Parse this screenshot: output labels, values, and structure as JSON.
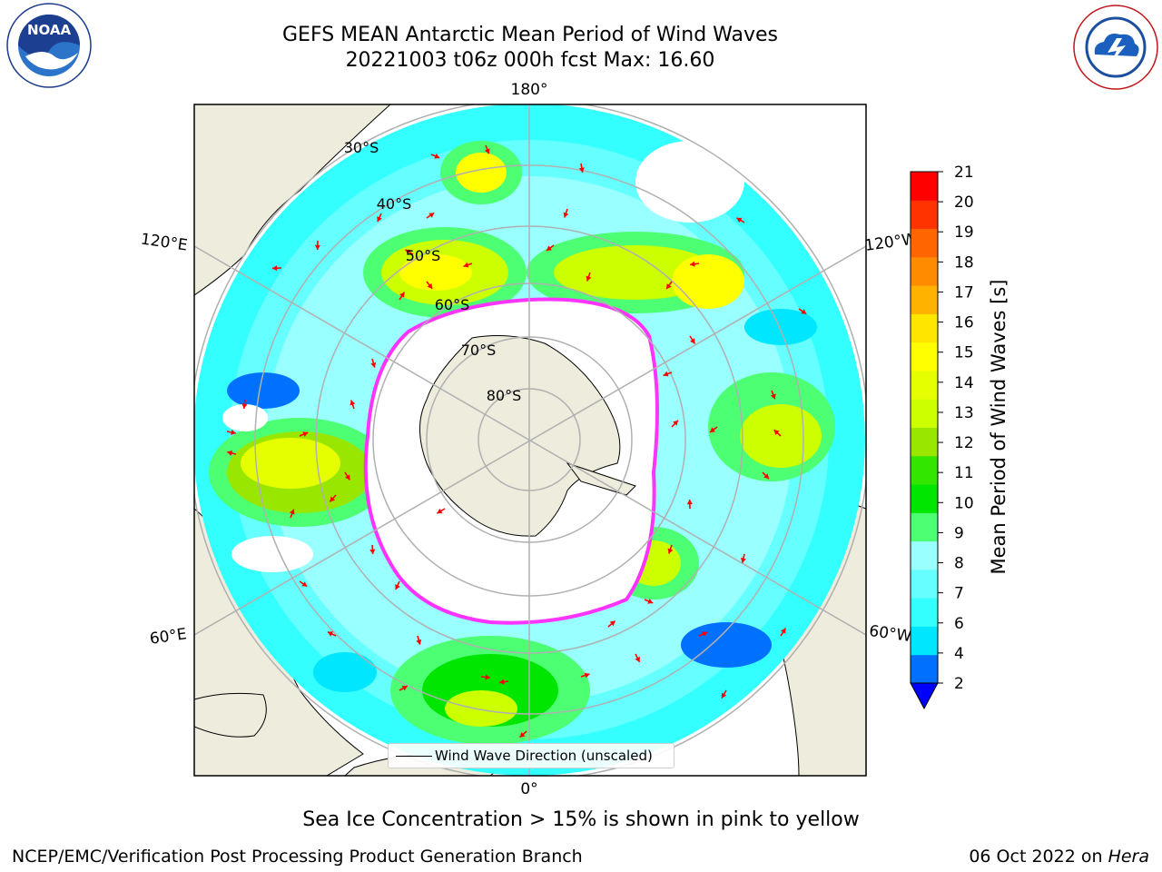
{
  "header": {
    "title_line1": "GEFS MEAN Antarctic Mean Period of Wind Waves",
    "title_line2": "20221003 t06z 000h fcst   Max: 16.60"
  },
  "logos": {
    "left": {
      "text": "NOAA",
      "ring_text": "NATIONAL OCEANIC AND ATMOSPHERIC ADMINISTRATION · U.S. DEPARTMENT OF COMMERCE"
    },
    "right": {
      "ring_text": "NATIONAL WEATHER SERVICE"
    }
  },
  "map": {
    "lon_labels": [
      "180°",
      "120°E",
      "120°W",
      "60°E",
      "60°W",
      "0°"
    ],
    "lat_labels": [
      "30°S",
      "40°S",
      "50°S",
      "60°S",
      "70°S",
      "80°S"
    ],
    "legend_label": "Wind Wave Direction (unscaled)",
    "colors": {
      "land": "#eeecdc",
      "ice_edge": "#ff33ff",
      "arrow": "#ff0000",
      "grid": "#b0b0b0"
    }
  },
  "colorbar": {
    "title": "Mean Period of Wind Waves [s]",
    "ticks": [
      "2",
      "4",
      "6",
      "7",
      "8",
      "9",
      "10",
      "11",
      "12",
      "13",
      "14",
      "15",
      "16",
      "17",
      "18",
      "19",
      "20",
      "21"
    ],
    "colors": [
      "#0070ff",
      "#00e6ff",
      "#33ffff",
      "#66ffff",
      "#99ffff",
      "#4dff73",
      "#00e600",
      "#33e600",
      "#99e600",
      "#ccff00",
      "#e6ff00",
      "#ffff00",
      "#ffe600",
      "#ffb300",
      "#ff8c00",
      "#ff6600",
      "#ff3300",
      "#ff0000"
    ],
    "under_color": "#0000ff"
  },
  "footer": {
    "subtitle": "Sea Ice Concentration > 15% is shown in pink to yellow",
    "credit": "NCEP/EMC/Verification Post Processing Product Generation Branch",
    "date_prefix": "06 Oct 2022 on",
    "date_host": "Hera"
  }
}
